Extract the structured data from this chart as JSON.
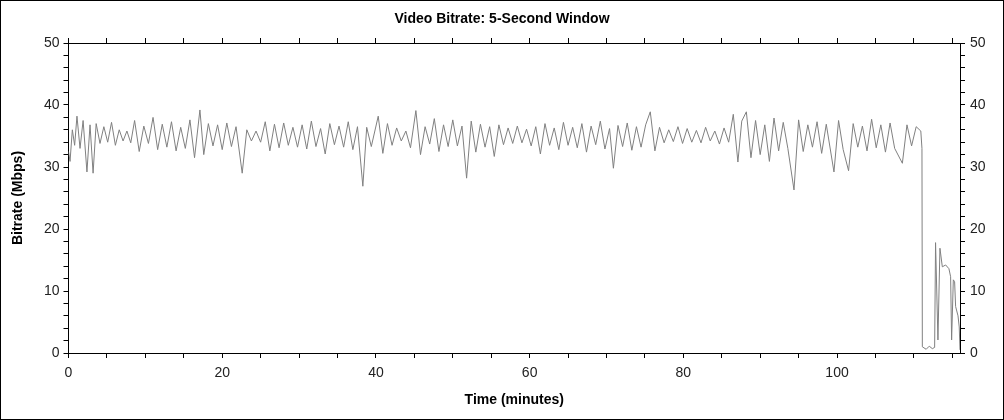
{
  "chart_data": {
    "type": "line",
    "title": "Video Bitrate: 5-Second Window",
    "xlabel": "Time (minutes)",
    "ylabel": "Bitrate (Mbps)",
    "x": [
      0,
      0.2,
      0.5,
      0.8,
      1.1,
      1.5,
      1.9,
      2.4,
      2.8,
      3.2,
      3.6,
      4.1,
      4.6,
      5.1,
      5.6,
      6.1,
      6.6,
      7.1,
      7.6,
      8.1,
      8.6,
      9.2,
      9.8,
      10.4,
      11,
      11.6,
      12.2,
      12.8,
      13.4,
      14,
      14.6,
      15.2,
      15.8,
      16.4,
      17.1,
      17.6,
      18.2,
      18.8,
      19.4,
      20,
      20.6,
      21.2,
      21.8,
      22.6,
      23.2,
      23.8,
      24.4,
      25,
      25.6,
      26.2,
      26.8,
      27.4,
      28,
      28.6,
      29.2,
      29.8,
      30.4,
      31,
      31.6,
      32.2,
      32.8,
      33.4,
      34,
      34.6,
      35.2,
      35.8,
      36.4,
      37,
      37.6,
      38.3,
      38.8,
      39.4,
      40.3,
      40.9,
      41.5,
      42.1,
      42.7,
      43.3,
      43.9,
      44.5,
      45.2,
      45.8,
      46.4,
      47,
      47.6,
      48.2,
      48.8,
      49.4,
      50,
      50.6,
      51.2,
      51.8,
      52.4,
      53,
      53.6,
      54.2,
      54.8,
      55.4,
      56,
      56.6,
      57.2,
      57.8,
      58.4,
      59,
      59.6,
      60.2,
      60.8,
      61.4,
      62,
      62.6,
      63.2,
      63.8,
      64.4,
      65,
      65.6,
      66.2,
      66.8,
      67.4,
      68,
      68.6,
      69.2,
      69.8,
      70.4,
      70.9,
      71.5,
      72.1,
      72.7,
      73.3,
      73.9,
      74.5,
      75.1,
      75.7,
      76.3,
      76.9,
      77.5,
      78.1,
      78.7,
      79.3,
      79.9,
      80.5,
      81.1,
      81.7,
      82.3,
      82.9,
      83.5,
      84.1,
      84.7,
      85.3,
      85.9,
      86.5,
      87.1,
      87.6,
      88.2,
      88.8,
      89.4,
      90,
      90.6,
      91.2,
      91.8,
      92.4,
      93,
      93.6,
      94.4,
      95,
      95.6,
      96.2,
      96.8,
      97.4,
      98,
      98.6,
      99.6,
      100.2,
      100.8,
      101.5,
      102.1,
      102.7,
      103.3,
      103.9,
      104.5,
      105.1,
      105.7,
      106.3,
      106.9,
      107.5,
      108.5,
      109.1,
      109.7,
      110.3,
      110.9,
      111.05,
      111.1,
      111.6,
      112,
      112.4,
      112.7,
      112.82,
      113.13,
      113.39,
      113.7,
      114.13,
      114.56,
      114.78,
      114.91,
      115.13,
      115.3,
      115.43,
      115.74,
      115.9,
      116
    ],
    "series": [
      {
        "color": "#808080",
        "values": [
          32.5,
          30.9,
          36,
          33.5,
          38.2,
          33,
          37.5,
          29.2,
          36.8,
          29,
          37,
          33.8,
          36.5,
          34,
          37.2,
          33.5,
          36,
          34.2,
          35.8,
          33.9,
          37.5,
          32.5,
          36.6,
          33.8,
          38,
          32.8,
          36.9,
          33.2,
          37.3,
          32.6,
          36.4,
          33,
          37.6,
          31.5,
          39.2,
          32,
          37,
          33.4,
          36.8,
          32.8,
          37.1,
          33.3,
          36.5,
          29,
          36,
          34.2,
          35.8,
          34,
          37.3,
          32.6,
          36.9,
          33.1,
          37.1,
          33.5,
          36.4,
          33.2,
          36.8,
          32.9,
          37.4,
          33.3,
          36.2,
          32.1,
          37,
          33.6,
          36.6,
          33.2,
          37.3,
          32.8,
          36.5,
          26.9,
          36.4,
          33.3,
          38.2,
          32.2,
          37,
          33.5,
          36.3,
          34.2,
          35.8,
          33.1,
          39.1,
          32,
          36.5,
          33.7,
          37.8,
          32.5,
          36.8,
          33.3,
          37.6,
          33.4,
          36.6,
          28.2,
          37.4,
          32.4,
          36.9,
          33.2,
          36.5,
          31.7,
          36.8,
          33.6,
          36.3,
          33.8,
          36.6,
          33.9,
          36.1,
          33.4,
          36.5,
          32.1,
          37,
          33.5,
          36.3,
          32.8,
          37.2,
          33.5,
          36.4,
          33.1,
          37,
          32.4,
          36.6,
          33.6,
          37.4,
          32.9,
          36.2,
          29.8,
          36.7,
          33.3,
          37.1,
          32.7,
          36.5,
          33.2,
          36.8,
          38.9,
          32.6,
          36.4,
          33.9,
          36,
          34.1,
          36.5,
          33.8,
          36.2,
          34,
          35.9,
          33.9,
          36.4,
          34.2,
          35.8,
          33.7,
          36.3,
          34,
          38.5,
          30.8,
          37.4,
          38.9,
          31.5,
          37.5,
          32,
          36.8,
          30.9,
          37.9,
          32.6,
          37.2,
          33,
          26.3,
          37.6,
          32.5,
          36.8,
          33.2,
          37.3,
          32.2,
          36.9,
          29.2,
          37.5,
          32.8,
          29.4,
          37,
          33.2,
          36.6,
          32.6,
          37.7,
          33.1,
          36.8,
          32.4,
          37.1,
          33,
          30.6,
          36.8,
          33.4,
          36.5,
          35.8,
          33,
          1,
          0.6,
          1.1,
          0.7,
          0.9,
          17.8,
          2.1,
          16.9,
          13.9,
          14.2,
          13.6,
          12.3,
          2.1,
          11.8,
          11.5,
          7.5,
          6,
          4.2,
          0.5
        ]
      }
    ],
    "xlim": [
      0,
      116
    ],
    "xticks": [
      0,
      {
        "value": 5,
        "label": null
      },
      {
        "value": 10,
        "label": null
      },
      {
        "value": 15,
        "label": null
      },
      20,
      {
        "value": 25,
        "label": null
      },
      {
        "value": 30,
        "label": null
      },
      {
        "value": 35,
        "label": null
      },
      40,
      {
        "value": 45,
        "label": null
      },
      {
        "value": 50,
        "label": null
      },
      {
        "value": 55,
        "label": null
      },
      60,
      {
        "value": 65,
        "label": null
      },
      {
        "value": 70,
        "label": null
      },
      {
        "value": 75,
        "label": null
      },
      80,
      {
        "value": 85,
        "label": null
      },
      {
        "value": 90,
        "label": null
      },
      {
        "value": 95,
        "label": null
      },
      100,
      {
        "value": 105,
        "label": null
      },
      {
        "value": 110,
        "label": null
      },
      {
        "value": 115,
        "label": null
      }
    ],
    "ylim": [
      0,
      50
    ],
    "yticks": [
      0,
      {
        "value": 2,
        "label": null
      },
      {
        "value": 4,
        "label": null
      },
      {
        "value": 6,
        "label": null
      },
      {
        "value": 8,
        "label": null
      },
      10,
      {
        "value": 12,
        "label": null
      },
      {
        "value": 14,
        "label": null
      },
      {
        "value": 16,
        "label": null
      },
      {
        "value": 18,
        "label": null
      },
      20,
      {
        "value": 22,
        "label": null
      },
      {
        "value": 24,
        "label": null
      },
      {
        "value": 26,
        "label": null
      },
      {
        "value": 28,
        "label": null
      },
      30,
      {
        "value": 32,
        "label": null
      },
      {
        "value": 34,
        "label": null
      },
      {
        "value": 36,
        "label": null
      },
      {
        "value": 38,
        "label": null
      },
      40,
      {
        "value": 42,
        "label": null
      },
      {
        "value": 44,
        "label": null
      },
      {
        "value": 46,
        "label": null
      },
      {
        "value": 48,
        "label": null
      },
      50
    ],
    "y2lim": [
      0,
      50
    ],
    "y2ticks": [
      0,
      {
        "value": 2,
        "label": null
      },
      {
        "value": 4,
        "label": null
      },
      {
        "value": 6,
        "label": null
      },
      {
        "value": 8,
        "label": null
      },
      10,
      {
        "value": 12,
        "label": null
      },
      {
        "value": 14,
        "label": null
      },
      {
        "value": 16,
        "label": null
      },
      {
        "value": 18,
        "label": null
      },
      20,
      {
        "value": 22,
        "label": null
      },
      {
        "value": 24,
        "label": null
      },
      {
        "value": 26,
        "label": null
      },
      {
        "value": 28,
        "label": null
      },
      30,
      {
        "value": 32,
        "label": null
      },
      {
        "value": 34,
        "label": null
      },
      {
        "value": 36,
        "label": null
      },
      {
        "value": 38,
        "label": null
      },
      40,
      {
        "value": 42,
        "label": null
      },
      {
        "value": 44,
        "label": null
      },
      {
        "value": 46,
        "label": null
      },
      {
        "value": 48,
        "label": null
      },
      50
    ],
    "grid": false,
    "legend": false,
    "marker": "none"
  }
}
